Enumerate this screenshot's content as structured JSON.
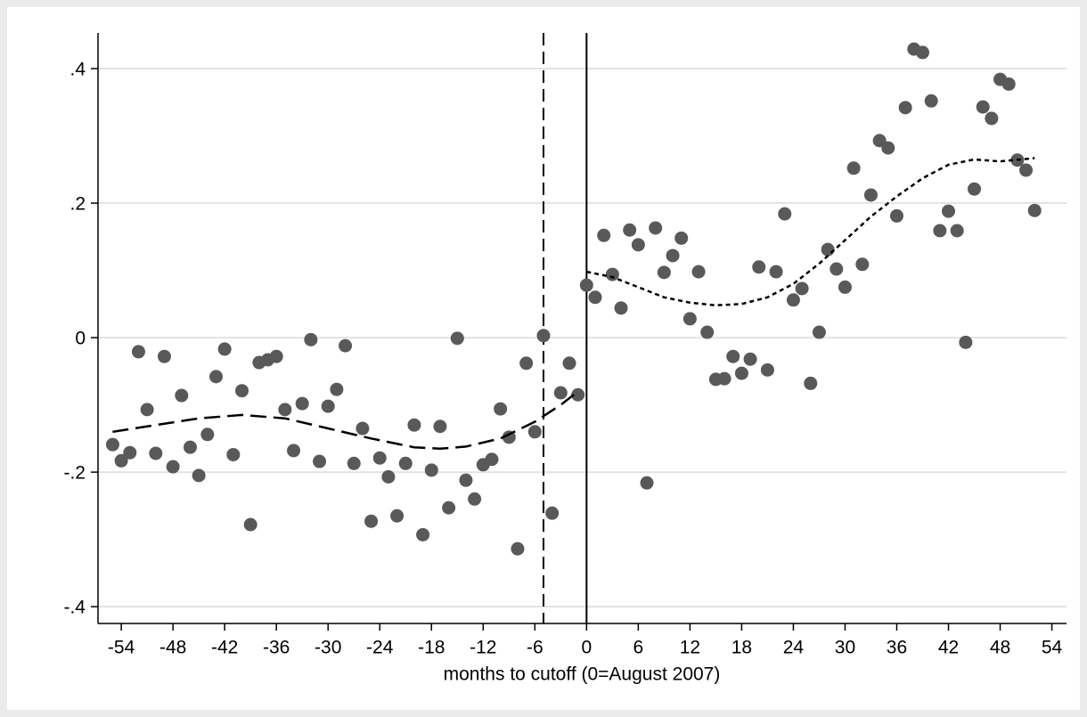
{
  "chart_data": {
    "type": "scatter",
    "x_label": "months to cutoff (0=August 2007)",
    "xlim": [
      -56.7,
      55.7
    ],
    "ylim": [
      -0.425,
      0.453
    ],
    "xticks": [
      -54,
      -48,
      -42,
      -36,
      -30,
      -24,
      -18,
      -12,
      -6,
      0,
      6,
      12,
      18,
      24,
      30,
      36,
      42,
      48,
      54
    ],
    "yticks": [
      {
        "value": -0.4,
        "label": "-.4"
      },
      {
        "value": -0.2,
        "label": "-.2"
      },
      0,
      {
        "value": 0.2,
        "label": ".2"
      },
      {
        "value": 0.4,
        "label": ".4"
      }
    ],
    "grid": true,
    "points": {
      "color": "#595959",
      "x": [
        -55,
        -54,
        -53,
        -52,
        -51,
        -50,
        -49,
        -48,
        -47,
        -46,
        -45,
        -44,
        -43,
        -42,
        -41,
        -40,
        -39,
        -38,
        -37,
        -36,
        -35,
        -34,
        -33,
        -32,
        -31,
        -30,
        -29,
        -28,
        -27,
        -26,
        -25,
        -24,
        -23,
        -22,
        -21,
        -20,
        -19,
        -18,
        -17,
        -16,
        -15,
        -14,
        -13,
        -12,
        -11,
        -10,
        -9,
        -8,
        -7,
        -6,
        -5,
        -4,
        -3,
        -2,
        -1,
        0,
        1,
        2,
        3,
        4,
        5,
        6,
        7,
        8,
        9,
        10,
        11,
        12,
        13,
        14,
        15,
        16,
        17,
        18,
        19,
        20,
        21,
        22,
        23,
        24,
        25,
        26,
        27,
        28,
        29,
        30,
        31,
        32,
        33,
        34,
        35,
        36,
        37,
        38,
        39,
        40,
        41,
        42,
        43,
        44,
        45,
        46,
        47,
        48,
        49,
        50,
        51,
        52
      ],
      "values": [
        -0.159,
        -0.183,
        -0.171,
        -0.021,
        -0.107,
        -0.172,
        -0.028,
        -0.192,
        -0.086,
        -0.163,
        -0.205,
        -0.144,
        -0.058,
        -0.017,
        -0.174,
        -0.079,
        -0.278,
        -0.037,
        -0.033,
        -0.028,
        -0.107,
        -0.168,
        -0.098,
        -0.003,
        -0.184,
        -0.102,
        -0.077,
        -0.012,
        -0.187,
        -0.135,
        -0.273,
        -0.179,
        -0.207,
        -0.265,
        -0.187,
        -0.13,
        -0.293,
        -0.197,
        -0.132,
        -0.253,
        -0.001,
        -0.212,
        -0.24,
        -0.189,
        -0.181,
        -0.106,
        -0.148,
        -0.314,
        -0.038,
        -0.14,
        0.003,
        -0.261,
        -0.082,
        -0.038,
        -0.085,
        0.078,
        0.06,
        0.152,
        0.094,
        0.044,
        0.16,
        0.138,
        -0.216,
        0.163,
        0.097,
        0.122,
        0.148,
        0.028,
        0.098,
        0.008,
        -0.062,
        -0.061,
        -0.028,
        -0.053,
        -0.032,
        0.105,
        -0.048,
        0.098,
        0.184,
        0.056,
        0.073,
        -0.068,
        0.008,
        0.131,
        0.102,
        0.075,
        0.252,
        0.109,
        0.212,
        0.293,
        0.282,
        0.181,
        0.342,
        0.429,
        0.424,
        0.352,
        0.159,
        0.188,
        0.159,
        -0.007,
        0.221,
        0.343,
        0.326,
        0.384,
        0.377,
        0.264,
        0.249,
        0.189
      ]
    },
    "fits": [
      {
        "style": "dashed",
        "color": "#000000",
        "x": [
          -55,
          -50,
          -45,
          -40,
          -35,
          -30,
          -25,
          -20,
          -17,
          -14,
          -10,
          -6,
          -3,
          -1
        ],
        "values": [
          -0.14,
          -0.13,
          -0.12,
          -0.115,
          -0.12,
          -0.135,
          -0.15,
          -0.163,
          -0.165,
          -0.162,
          -0.15,
          -0.125,
          -0.1,
          -0.08
        ]
      },
      {
        "style": "dotted",
        "color": "#000000",
        "x": [
          0,
          3,
          6,
          9,
          12,
          15,
          18,
          21,
          24,
          27,
          30,
          33,
          36,
          39,
          42,
          45,
          48,
          52
        ],
        "values": [
          0.098,
          0.09,
          0.075,
          0.06,
          0.052,
          0.048,
          0.05,
          0.06,
          0.08,
          0.11,
          0.145,
          0.18,
          0.21,
          0.237,
          0.257,
          0.265,
          0.262,
          0.267
        ]
      }
    ],
    "reference_lines": [
      {
        "x": -5,
        "style": "dashed"
      },
      {
        "x": 0,
        "style": "solid"
      }
    ]
  }
}
